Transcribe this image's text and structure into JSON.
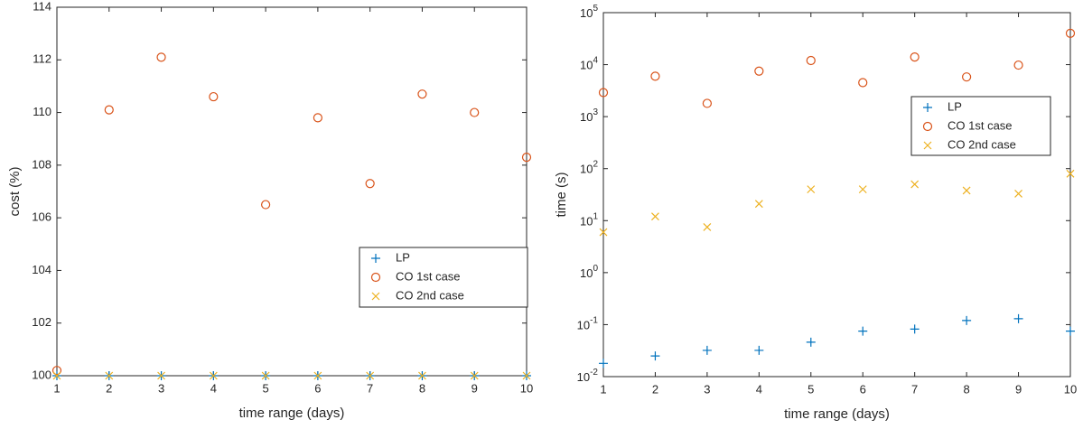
{
  "chart_data": [
    {
      "type": "scatter",
      "xlabel": "time range (days)",
      "ylabel": "cost (%)",
      "x": [
        1,
        2,
        3,
        4,
        5,
        6,
        7,
        8,
        9,
        10
      ],
      "xlim": [
        1,
        10
      ],
      "xticks": [
        1,
        2,
        3,
        4,
        5,
        6,
        7,
        8,
        9,
        10
      ],
      "ylim": [
        100,
        114
      ],
      "yticks": [
        100,
        102,
        104,
        106,
        108,
        110,
        112,
        114
      ],
      "log_y": false,
      "legend": "southeast",
      "series": [
        {
          "name": "LP",
          "color": "#0072bd",
          "marker": "+",
          "values": [
            100,
            100,
            100,
            100,
            100,
            100,
            100,
            100,
            100,
            100
          ]
        },
        {
          "name": "CO 1st case",
          "color": "#d95319",
          "marker": "o",
          "values": [
            100.2,
            110.1,
            112.1,
            110.6,
            106.5,
            109.8,
            107.3,
            110.7,
            110.0,
            108.3
          ]
        },
        {
          "name": "CO 2nd case",
          "color": "#edb120",
          "marker": "x",
          "values": [
            100,
            100,
            100,
            100,
            100,
            100,
            100,
            100,
            100,
            100
          ]
        }
      ]
    },
    {
      "type": "scatter",
      "xlabel": "time range (days)",
      "ylabel": "time (s)",
      "x": [
        1,
        2,
        3,
        4,
        5,
        6,
        7,
        8,
        9,
        10
      ],
      "xlim": [
        1,
        10
      ],
      "xticks": [
        1,
        2,
        3,
        4,
        5,
        6,
        7,
        8,
        9,
        10
      ],
      "ylim": [
        0.01,
        100000
      ],
      "yticks": [
        {
          "value": 0.01,
          "label": "10^-2"
        },
        {
          "value": 0.1,
          "label": "10^-1"
        },
        {
          "value": 1,
          "label": "10^0"
        },
        {
          "value": 10,
          "label": "10^1"
        },
        {
          "value": 100,
          "label": "10^2"
        },
        {
          "value": 1000,
          "label": "10^3"
        },
        {
          "value": 10000,
          "label": "10^4"
        },
        {
          "value": 100000,
          "label": "10^5"
        }
      ],
      "log_y": true,
      "legend": "northeast",
      "series": [
        {
          "name": "LP",
          "color": "#0072bd",
          "marker": "+",
          "values": [
            0.018,
            0.025,
            0.032,
            0.032,
            0.046,
            0.075,
            0.082,
            0.12,
            0.13,
            0.075
          ]
        },
        {
          "name": "CO 1st case",
          "color": "#d95319",
          "marker": "o",
          "values": [
            2900,
            6000,
            1800,
            7500,
            12000,
            4500,
            14000,
            5800,
            9800,
            40000
          ]
        },
        {
          "name": "CO 2nd case",
          "color": "#edb120",
          "marker": "x",
          "values": [
            6,
            12,
            7.5,
            21,
            40,
            40,
            50,
            38,
            33,
            80
          ]
        }
      ]
    }
  ]
}
